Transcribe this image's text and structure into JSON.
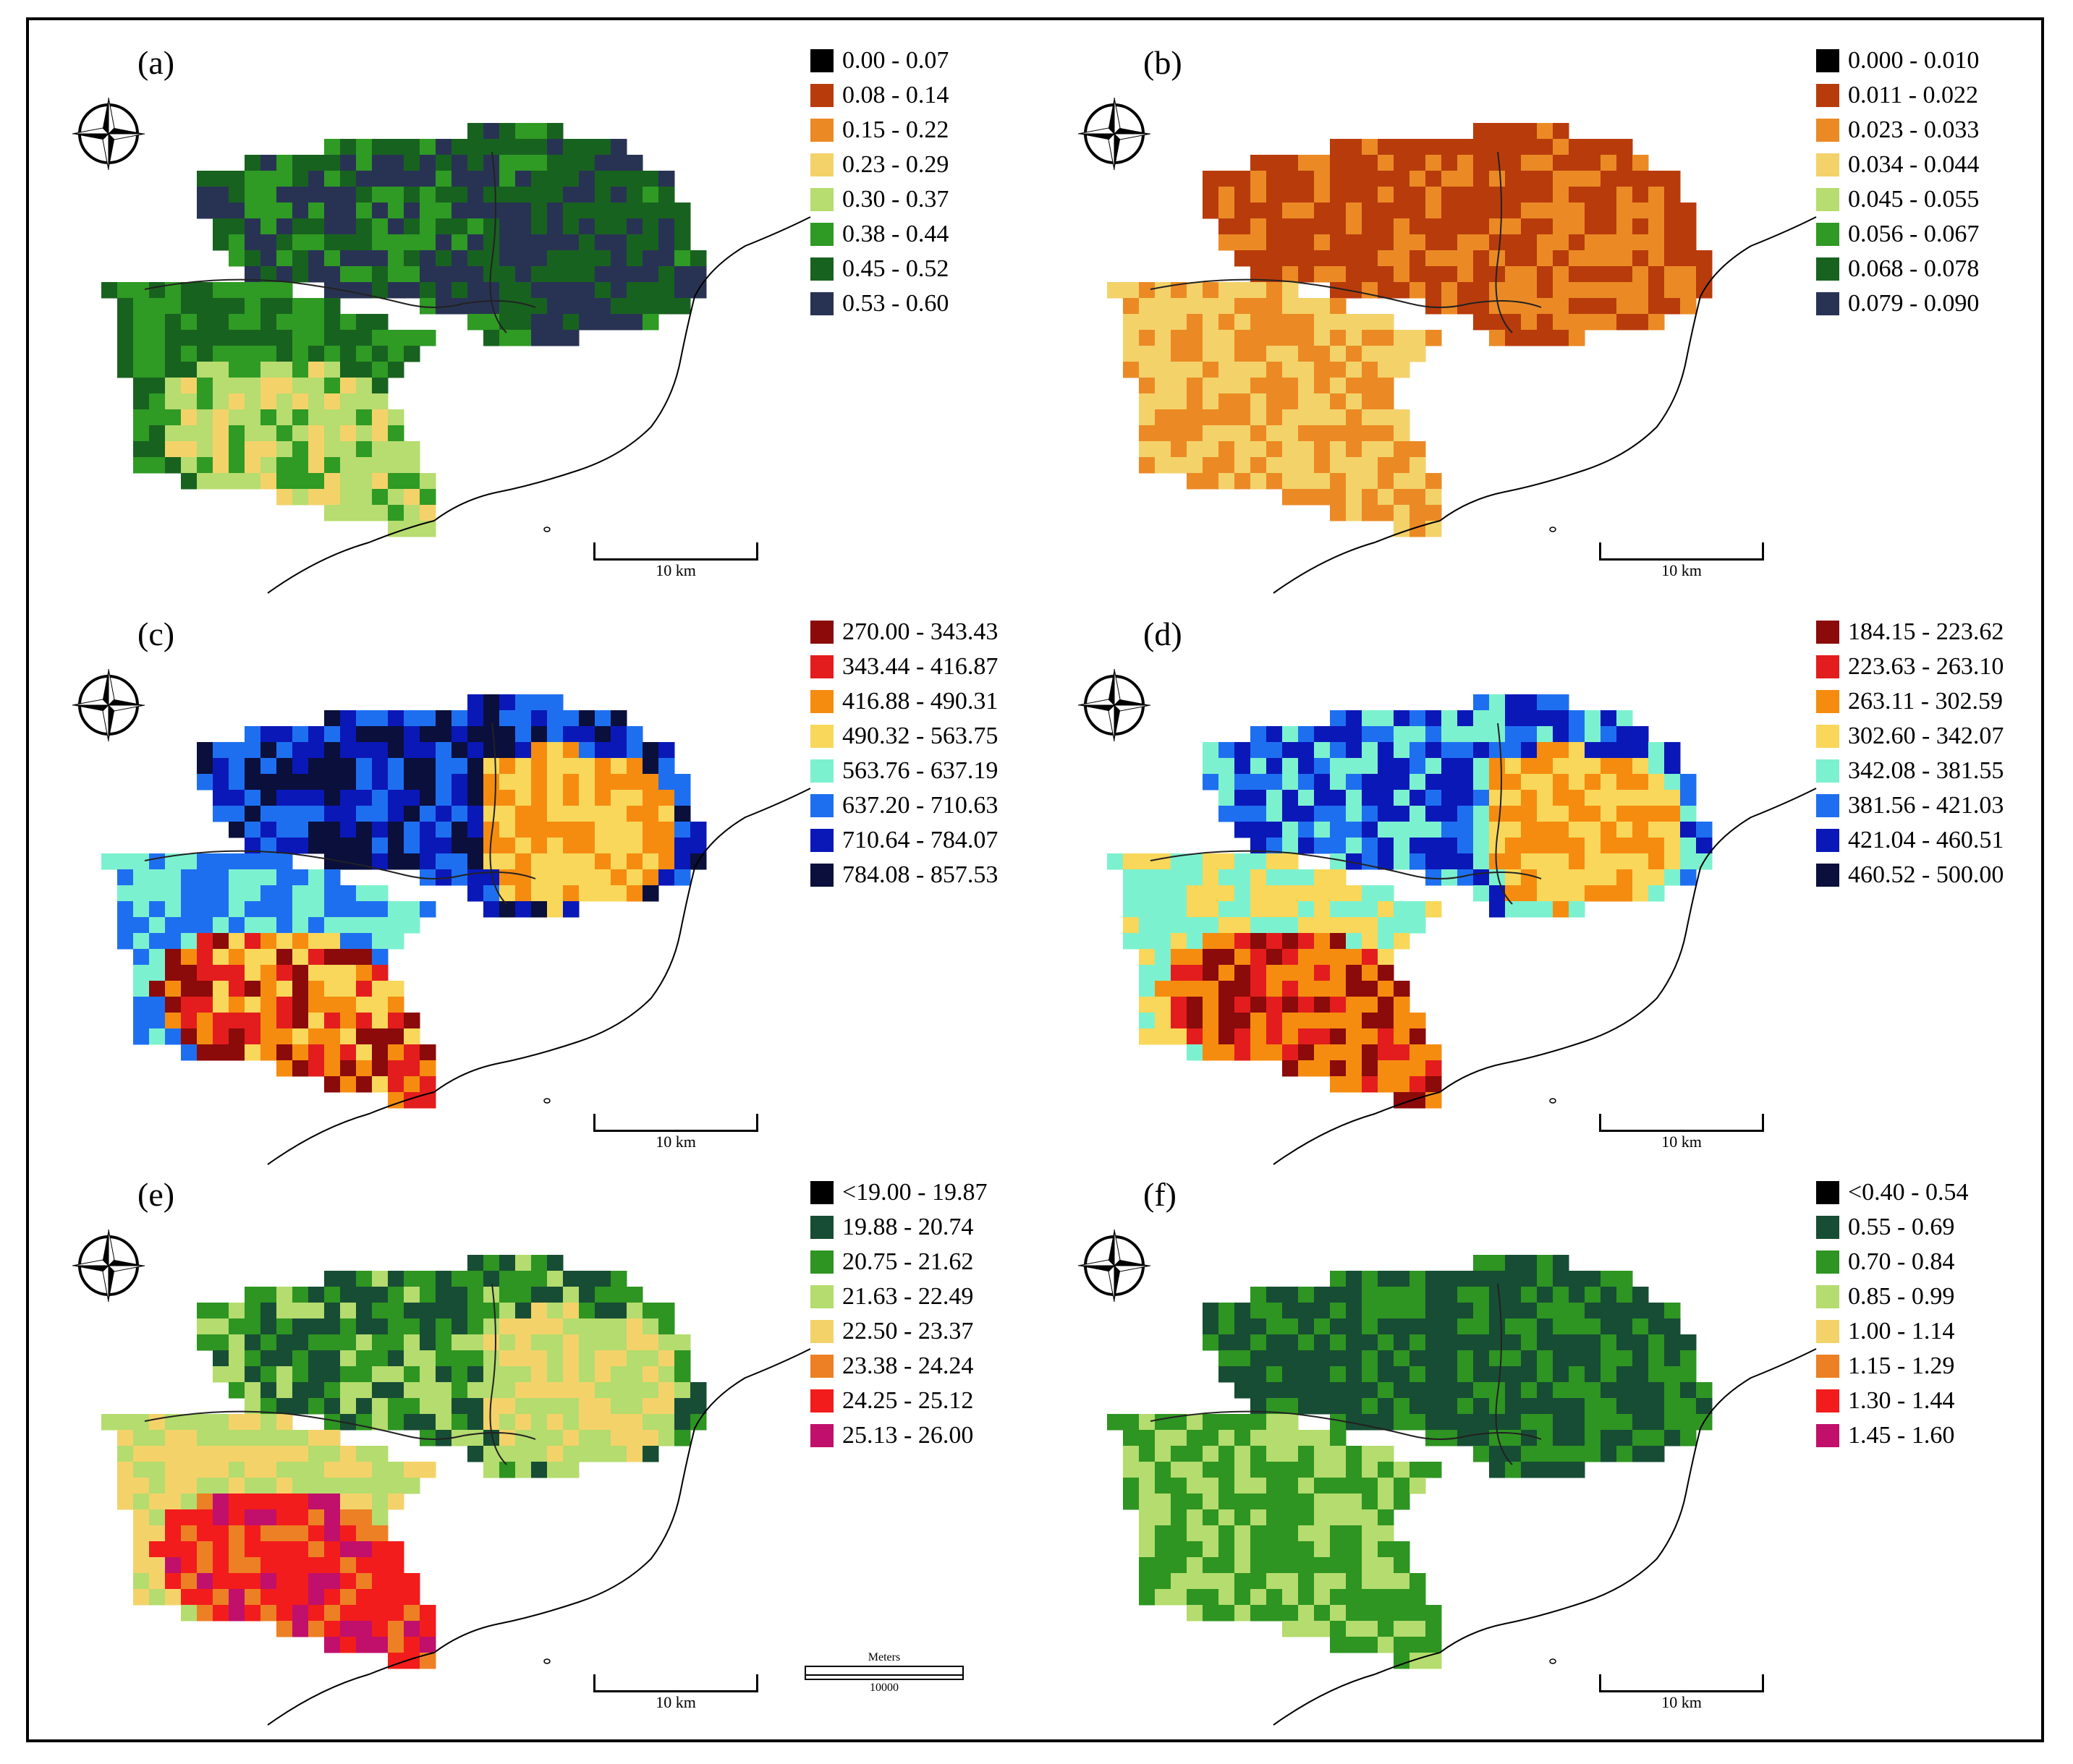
{
  "figure": {
    "scale_bar_label": "10 km",
    "meters_scale": {
      "title": "Meters",
      "value": "10000"
    }
  },
  "panels": [
    {
      "label": "(a)",
      "colors": [
        "#000000",
        "#b83b0c",
        "#eb8a24",
        "#f4d26a",
        "#b7dc6f",
        "#2f9a24",
        "#18621f",
        "#283353"
      ],
      "legend": [
        "0.00 - 0.07",
        "0.08 - 0.14",
        "0.15 - 0.22",
        "0.23 - 0.29",
        "0.30 - 0.37",
        "0.38 - 0.44",
        "0.45 - 0.52",
        "0.53 - 0.60"
      ],
      "pattern": {
        "north": [
          5,
          6,
          7
        ],
        "west": [
          5,
          6
        ],
        "south": [
          4,
          4,
          3,
          5
        ],
        "east": [
          6,
          7
        ]
      }
    },
    {
      "label": "(b)",
      "colors": [
        "#000000",
        "#b83b0c",
        "#eb8a24",
        "#f4d26a",
        "#b7dc6f",
        "#2f9a24",
        "#18621f",
        "#283353"
      ],
      "legend": [
        "0.000 - 0.010",
        "0.011 - 0.022",
        "0.023 - 0.033",
        "0.034 - 0.044",
        "0.045 - 0.055",
        "0.056 - 0.067",
        "0.068 - 0.078",
        "0.079 - 0.090"
      ],
      "pattern": {
        "north": [
          1,
          2,
          1
        ],
        "west": [
          2,
          3
        ],
        "south": [
          3,
          2,
          3,
          2
        ],
        "east": [
          1,
          2
        ]
      }
    },
    {
      "label": "(c)",
      "colors": [
        "#8b0a0a",
        "#e31d1d",
        "#f58c10",
        "#f8d75a",
        "#7cf1cf",
        "#1e6ff0",
        "#0a18b8",
        "#0a0f3c"
      ],
      "legend": [
        "270.00 - 343.43",
        "343.44 - 416.87",
        "416.88 - 490.31",
        "490.32 - 563.75",
        "563.76 - 637.19",
        "637.20 - 710.63",
        "710.64 - 784.07",
        "784.08 - 857.53"
      ],
      "pattern": {
        "north": [
          6,
          7,
          5
        ],
        "west": [
          5,
          4
        ],
        "south": [
          2,
          1,
          0,
          3
        ],
        "east": [
          3,
          2
        ]
      }
    },
    {
      "label": "(d)",
      "colors": [
        "#8b0a0a",
        "#e31d1d",
        "#f58c10",
        "#f8d75a",
        "#7cf1cf",
        "#1e6ff0",
        "#0a18b8",
        "#0a0f3c"
      ],
      "legend": [
        "184.15 - 223.62",
        "223.63 - 263.10",
        "263.11 - 302.59",
        "302.60 - 342.07",
        "342.08 - 381.55",
        "381.56 - 421.03",
        "421.04 - 460.51",
        "460.52 - 500.00"
      ],
      "pattern": {
        "north": [
          5,
          6,
          4
        ],
        "west": [
          4,
          3
        ],
        "south": [
          2,
          1,
          0,
          2
        ],
        "east": [
          3,
          2
        ]
      }
    },
    {
      "label": "(e)",
      "colors": [
        "#000000",
        "#174d34",
        "#2e9422",
        "#b4dc6e",
        "#f4d26a",
        "#ed8024",
        "#f21c1c",
        "#c0106b"
      ],
      "legend": [
        "<19.00 - 19.87",
        "19.88 - 20.74",
        "20.75 - 21.62",
        "21.63 - 22.49",
        "22.50 - 23.37",
        "23.38 - 24.24",
        "24.25 - 25.12",
        "25.13 - 26.00"
      ],
      "pattern": {
        "north": [
          2,
          3,
          1
        ],
        "west": [
          3,
          4
        ],
        "south": [
          6,
          7,
          6,
          5
        ],
        "east": [
          4,
          3
        ]
      }
    },
    {
      "label": "(f)",
      "colors": [
        "#000000",
        "#174d34",
        "#2e9422",
        "#b4dc6e",
        "#f4d26a",
        "#ed8024",
        "#f21c1c",
        "#c0106b"
      ],
      "legend": [
        "<0.40 - 0.54",
        "0.55 - 0.69",
        "0.70 - 0.84",
        "0.85 - 0.99",
        "1.00 - 1.14",
        "1.15 - 1.29",
        "1.30 - 1.44",
        "1.45 - 1.60"
      ],
      "pattern": {
        "north": [
          1,
          2,
          1
        ],
        "west": [
          2,
          3
        ],
        "south": [
          3,
          2,
          3,
          2
        ],
        "east": [
          1,
          2
        ]
      }
    }
  ]
}
